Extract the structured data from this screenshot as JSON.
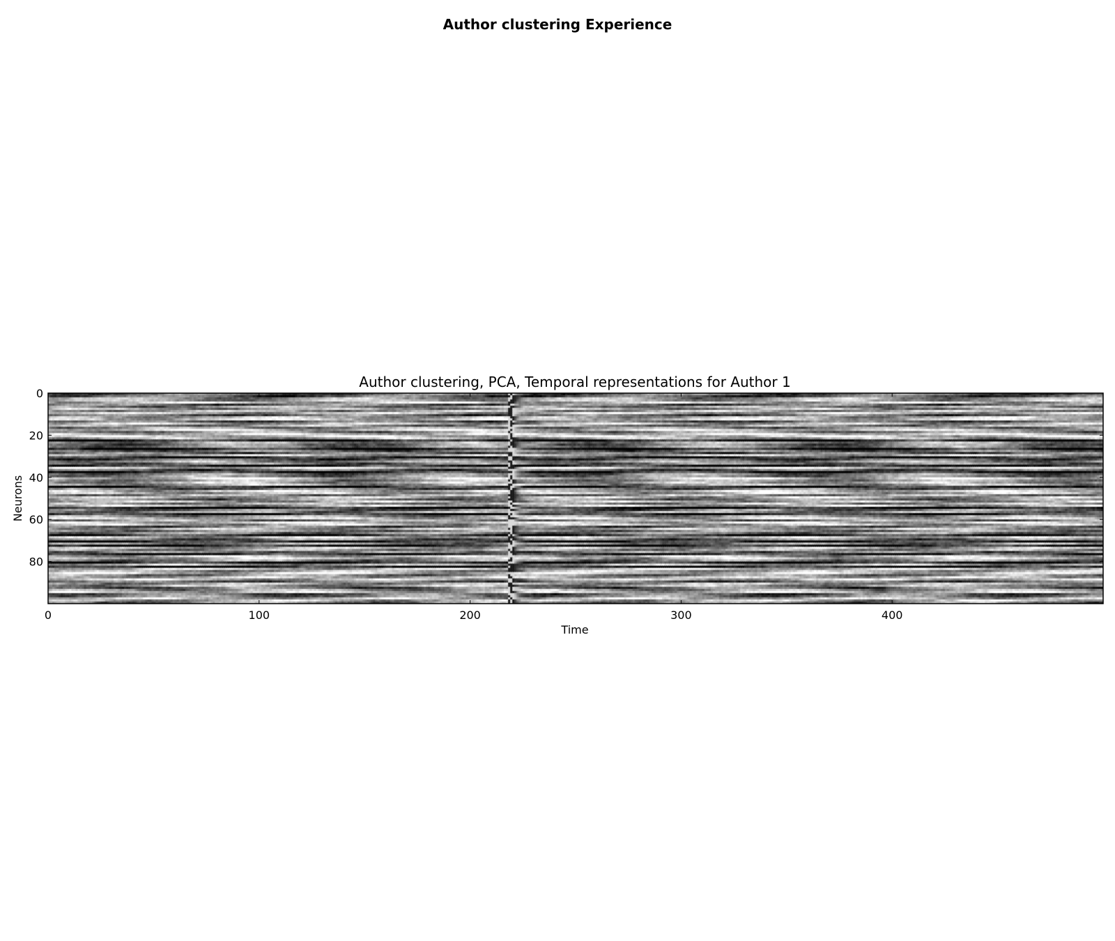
{
  "figure": {
    "suptitle": "Author clustering Experience"
  },
  "chart_data": {
    "type": "heatmap",
    "title": "Author clustering, PCA, Temporal representations for Author 1",
    "xlabel": "Time",
    "ylabel": "Neurons",
    "x_ticks": [
      0,
      100,
      200,
      300,
      400
    ],
    "y_ticks": [
      0,
      20,
      40,
      60,
      80
    ],
    "xlim": [
      0,
      500
    ],
    "ylim": [
      100,
      0
    ],
    "n_rows": 100,
    "n_cols": 500,
    "colormap": "gray",
    "dark_rows": [
      22,
      26,
      30,
      34,
      37,
      44,
      54,
      57,
      67,
      70,
      72,
      76,
      80,
      82
    ],
    "anomaly_column": 219,
    "cell_values": "procedurally estimated grayscale intensities (0=black,1=white)"
  }
}
